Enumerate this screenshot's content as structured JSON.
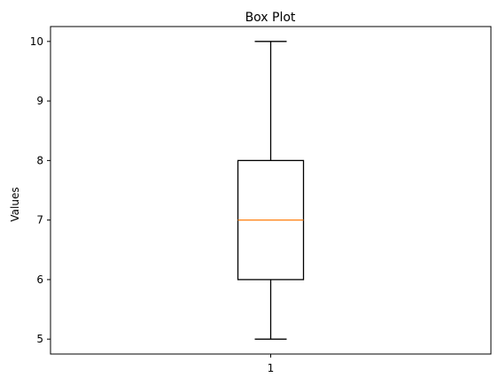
{
  "chart_data": {
    "type": "box",
    "title": "Box Plot",
    "xlabel": "",
    "ylabel": "Values",
    "categories": [
      "1"
    ],
    "boxes": [
      {
        "label": "1",
        "whisker_low": 5,
        "q1": 6,
        "median": 7,
        "q3": 8,
        "whisker_high": 10
      }
    ],
    "ylim": [
      4.75,
      10.25
    ],
    "yticks": [
      5,
      6,
      7,
      8,
      9,
      10
    ],
    "grid": false,
    "colors": {
      "box": "#000000",
      "median": "#ff7f0e",
      "whisker": "#000000"
    }
  }
}
